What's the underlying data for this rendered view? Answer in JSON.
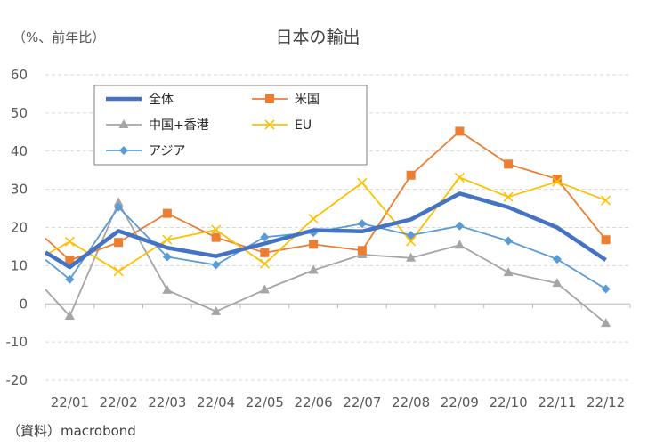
{
  "chart_data": {
    "type": "line",
    "title": "日本の輸出",
    "unit_label": "（%、前年比）",
    "source": "（資料）macrobond",
    "categories": [
      "22/01",
      "22/02",
      "22/03",
      "22/04",
      "22/05",
      "22/06",
      "22/07",
      "22/08",
      "22/09",
      "22/10",
      "22/11",
      "22/12"
    ],
    "ylim": [
      -20,
      60
    ],
    "yticks": [
      -20,
      -10,
      0,
      10,
      20,
      30,
      40,
      50,
      60
    ],
    "grid": true,
    "legend_placement": "top-left",
    "negative_tick_color": "#ff0000",
    "series": [
      {
        "name": "全体",
        "color": "#4472c4",
        "marker": "none",
        "width": "thick",
        "start": 13.5,
        "values": [
          9.6,
          19.1,
          14.7,
          12.5,
          15.8,
          19.3,
          19.0,
          22.1,
          28.9,
          25.3,
          20.0,
          11.5
        ]
      },
      {
        "name": "米国",
        "color": "#ed7d31",
        "marker": "square",
        "width": "normal",
        "start": 17.2,
        "values": [
          11.4,
          16.1,
          23.7,
          17.4,
          13.4,
          15.6,
          14.0,
          33.7,
          45.2,
          36.6,
          32.7,
          16.8
        ]
      },
      {
        "name": "中国+香港",
        "color": "#a5a5a5",
        "marker": "triangle",
        "width": "normal",
        "start": 3.8,
        "values": [
          -3.2,
          26.5,
          3.6,
          -2.0,
          3.7,
          8.8,
          12.9,
          12.0,
          15.4,
          8.2,
          5.4,
          -5.1
        ]
      },
      {
        "name": "EU",
        "color": "#ffc000",
        "marker": "x",
        "width": "normal",
        "start": 12.8,
        "values": [
          16.3,
          8.5,
          16.8,
          19.4,
          10.5,
          22.3,
          31.7,
          16.4,
          33.1,
          28.0,
          32.0,
          27.1
        ]
      },
      {
        "name": "アジア",
        "color": "#5b9bd5",
        "marker": "diamond",
        "width": "normal",
        "start": 11.6,
        "values": [
          6.4,
          25.3,
          12.3,
          10.2,
          17.5,
          18.7,
          21.0,
          18.0,
          20.4,
          16.5,
          11.7,
          3.9
        ]
      }
    ]
  }
}
